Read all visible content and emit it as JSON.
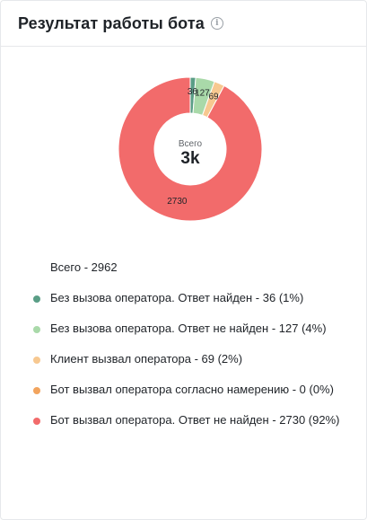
{
  "header": {
    "title": "Результат работы бота",
    "info_icon": "info-icon"
  },
  "center": {
    "label": "Всего",
    "value": "3k"
  },
  "legend": {
    "total": "Всего - 2962",
    "items": [
      {
        "label": "Без вызова оператора. Ответ найден - 36 (1%)",
        "color": "#5a9e86"
      },
      {
        "label": "Без вызова оператора. Ответ не найден - 127 (4%)",
        "color": "#a9d9a9"
      },
      {
        "label": "Клиент вызвал оператора - 69 (2%)",
        "color": "#f7c890"
      },
      {
        "label": "Бот вызвал оператора согласно намерению - 0 (0%)",
        "color": "#f2a45e"
      },
      {
        "label": "Бот вызвал оператора. Ответ не найден - 2730 (92%)",
        "color": "#f26b6b"
      }
    ]
  },
  "chart_data": {
    "type": "pie",
    "donut": true,
    "title": "Результат работы бота",
    "total": 2962,
    "center_label": "Всего",
    "center_value": "3k",
    "categories": [
      "Без вызова оператора. Ответ найден",
      "Без вызова оператора. Ответ не найден",
      "Клиент вызвал оператора",
      "Бот вызвал оператора согласно намерению",
      "Бот вызвал оператора. Ответ не найден"
    ],
    "values": [
      36,
      127,
      69,
      0,
      2730
    ],
    "percent": [
      1,
      4,
      2,
      0,
      92
    ],
    "colors": [
      "#5a9e86",
      "#a9d9a9",
      "#f7c890",
      "#f2a45e",
      "#f26b6b"
    ],
    "data_labels": [
      "36",
      "127",
      "69",
      "",
      "2730"
    ]
  }
}
